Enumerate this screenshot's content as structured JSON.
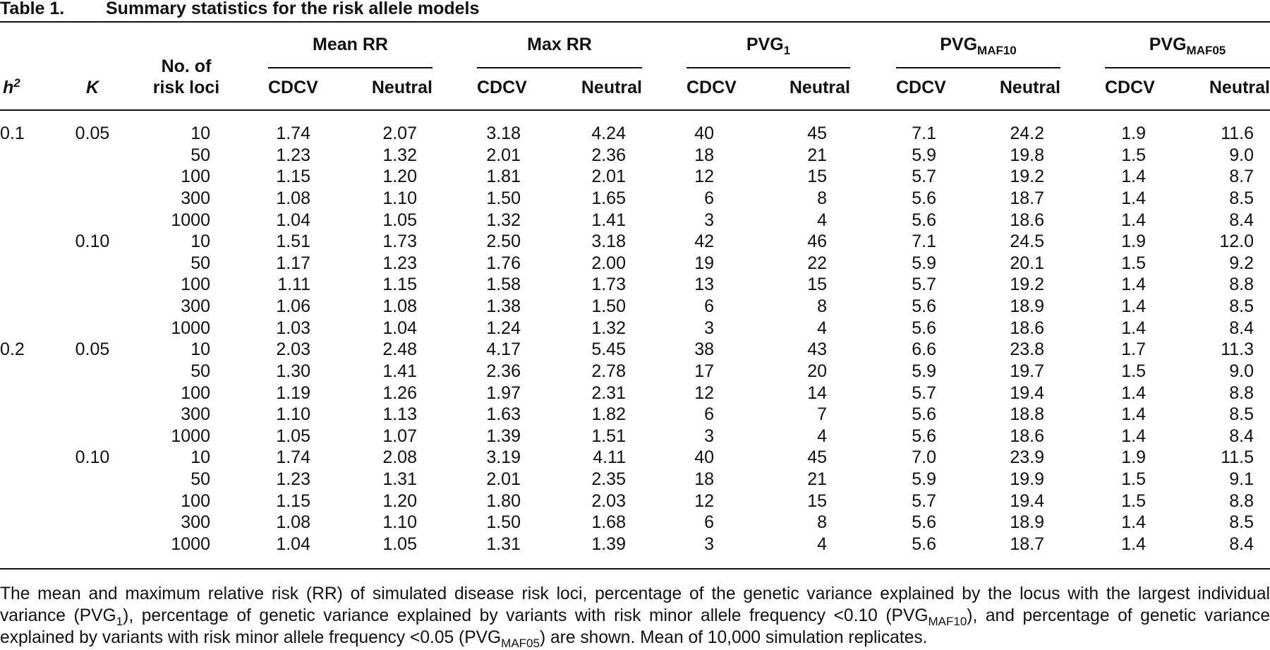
{
  "title": {
    "label": "Table 1.",
    "text": "Summary statistics for the risk allele models"
  },
  "header": {
    "h2": "h",
    "h2_sup": "2",
    "K": "K",
    "loci": [
      "No. of",
      "risk loci"
    ],
    "groups": [
      {
        "text": "Mean RR"
      },
      {
        "text": "Max RR"
      },
      {
        "text": "PVG",
        "sub": "1"
      },
      {
        "text": "PVG",
        "sub": "MAF10"
      },
      {
        "text": "PVG",
        "sub": "MAF05"
      }
    ],
    "subcols": [
      "CDCV",
      "Neutral"
    ]
  },
  "body": [
    {
      "h2": "0.1",
      "blocks": [
        {
          "K": "0.05",
          "rows": [
            [
              "10",
              "1.74",
              "2.07",
              "3.18",
              "4.24",
              "40",
              "45",
              "7.1",
              "24.2",
              "1.9",
              "11.6"
            ],
            [
              "50",
              "1.23",
              "1.32",
              "2.01",
              "2.36",
              "18",
              "21",
              "5.9",
              "19.8",
              "1.5",
              "9.0"
            ],
            [
              "100",
              "1.15",
              "1.20",
              "1.81",
              "2.01",
              "12",
              "15",
              "5.7",
              "19.2",
              "1.4",
              "8.7"
            ],
            [
              "300",
              "1.08",
              "1.10",
              "1.50",
              "1.65",
              "6",
              "8",
              "5.6",
              "18.7",
              "1.4",
              "8.5"
            ],
            [
              "1000",
              "1.04",
              "1.05",
              "1.32",
              "1.41",
              "3",
              "4",
              "5.6",
              "18.6",
              "1.4",
              "8.4"
            ]
          ]
        },
        {
          "K": "0.10",
          "rows": [
            [
              "10",
              "1.51",
              "1.73",
              "2.50",
              "3.18",
              "42",
              "46",
              "7.1",
              "24.5",
              "1.9",
              "12.0"
            ],
            [
              "50",
              "1.17",
              "1.23",
              "1.76",
              "2.00",
              "19",
              "22",
              "5.9",
              "20.1",
              "1.5",
              "9.2"
            ],
            [
              "100",
              "1.11",
              "1.15",
              "1.58",
              "1.73",
              "13",
              "15",
              "5.7",
              "19.2",
              "1.4",
              "8.8"
            ],
            [
              "300",
              "1.06",
              "1.08",
              "1.38",
              "1.50",
              "6",
              "8",
              "5.6",
              "18.9",
              "1.4",
              "8.5"
            ],
            [
              "1000",
              "1.03",
              "1.04",
              "1.24",
              "1.32",
              "3",
              "4",
              "5.6",
              "18.6",
              "1.4",
              "8.4"
            ]
          ]
        }
      ]
    },
    {
      "h2": "0.2",
      "blocks": [
        {
          "K": "0.05",
          "rows": [
            [
              "10",
              "2.03",
              "2.48",
              "4.17",
              "5.45",
              "38",
              "43",
              "6.6",
              "23.8",
              "1.7",
              "11.3"
            ],
            [
              "50",
              "1.30",
              "1.41",
              "2.36",
              "2.78",
              "17",
              "20",
              "5.9",
              "19.7",
              "1.5",
              "9.0"
            ],
            [
              "100",
              "1.19",
              "1.26",
              "1.97",
              "2.31",
              "12",
              "14",
              "5.7",
              "19.4",
              "1.4",
              "8.8"
            ],
            [
              "300",
              "1.10",
              "1.13",
              "1.63",
              "1.82",
              "6",
              "7",
              "5.6",
              "18.8",
              "1.4",
              "8.5"
            ],
            [
              "1000",
              "1.05",
              "1.07",
              "1.39",
              "1.51",
              "3",
              "4",
              "5.6",
              "18.6",
              "1.4",
              "8.4"
            ]
          ]
        },
        {
          "K": "0.10",
          "rows": [
            [
              "10",
              "1.74",
              "2.08",
              "3.19",
              "4.11",
              "40",
              "45",
              "7.0",
              "23.9",
              "1.9",
              "11.5"
            ],
            [
              "50",
              "1.23",
              "1.31",
              "2.01",
              "2.35",
              "18",
              "21",
              "5.9",
              "19.9",
              "1.5",
              "9.1"
            ],
            [
              "100",
              "1.15",
              "1.20",
              "1.80",
              "2.03",
              "12",
              "15",
              "5.7",
              "19.4",
              "1.5",
              "8.8"
            ],
            [
              "300",
              "1.08",
              "1.10",
              "1.50",
              "1.68",
              "6",
              "8",
              "5.6",
              "18.9",
              "1.4",
              "8.5"
            ],
            [
              "1000",
              "1.04",
              "1.05",
              "1.31",
              "1.39",
              "3",
              "4",
              "5.6",
              "18.7",
              "1.4",
              "8.4"
            ]
          ]
        }
      ]
    }
  ],
  "footnote": [
    {
      "text": "The mean and maximum relative risk (RR) of simulated disease risk loci, percentage of the genetic variance explained by the locus with the largest individual variance (PVG"
    },
    {
      "sub": "1"
    },
    {
      "text": "), percentage of genetic variance explained by variants with risk minor allele frequency <0.10 (PVG"
    },
    {
      "sub": "MAF10"
    },
    {
      "text": "), and percentage of genetic variance explained by variants with risk minor allele frequency <0.05 (PVG"
    },
    {
      "sub": "MAF05"
    },
    {
      "text": ") are shown. Mean of 10,000 simulation replicates."
    }
  ]
}
